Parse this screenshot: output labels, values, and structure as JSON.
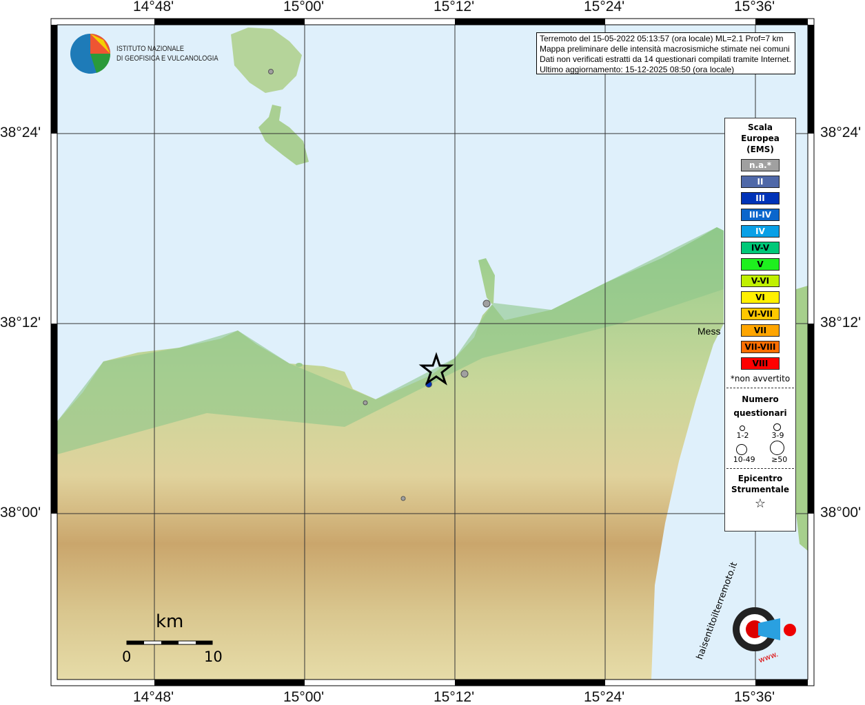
{
  "map": {
    "lon_ticks": [
      "14°48'",
      "15°00'",
      "15°12'",
      "15°24'",
      "15°36'"
    ],
    "lat_ticks": [
      "38°24'",
      "38°12'",
      "38°00'"
    ],
    "place_label": "Mess"
  },
  "logo": {
    "line1": "ISTITUTO NAZIONALE",
    "line2": "DI GEOFISICA E VULCANOLOGIA"
  },
  "info": {
    "lines": [
      "Terremoto del 15-05-2022 05:13:57 (ora locale) ML=2.1 Prof=7 km",
      "Mappa preliminare delle intensità macrosismiche stimate nei comuni",
      "Dati non verificati estratti da 14 questionari compilati tramite Internet.",
      "Ultimo aggiornamento: 15-12-2025 08:50 (ora locale)"
    ]
  },
  "legend": {
    "title": [
      "Scala",
      "Europea",
      "(EMS)"
    ],
    "classes": [
      {
        "label": "n.a.*",
        "color": "#a0a0a0",
        "text": "#ffffff"
      },
      {
        "label": "II",
        "color": "#4f68a8",
        "text": "#ffffff"
      },
      {
        "label": "III",
        "color": "#0033b8",
        "text": "#ffffff"
      },
      {
        "label": "III-IV",
        "color": "#0a66cc",
        "text": "#ffffff"
      },
      {
        "label": "IV",
        "color": "#0aa0e6",
        "text": "#ffffff"
      },
      {
        "label": "IV-V",
        "color": "#00c878",
        "text": "#000000"
      },
      {
        "label": "V",
        "color": "#1ef01e",
        "text": "#000000"
      },
      {
        "label": "V-VI",
        "color": "#c0f000",
        "text": "#000000"
      },
      {
        "label": "VI",
        "color": "#fff000",
        "text": "#000000"
      },
      {
        "label": "VI-VII",
        "color": "#ffc800",
        "text": "#000000"
      },
      {
        "label": "VII",
        "color": "#ffa500",
        "text": "#000000"
      },
      {
        "label": "VII-VIII",
        "color": "#ff6e00",
        "text": "#000000"
      },
      {
        "label": "VIII",
        "color": "#ff0000",
        "text": "#000000"
      }
    ],
    "note": "*non avvertito",
    "count_title": [
      "Numero",
      "questionari"
    ],
    "counts": [
      "1-2",
      "3-9",
      "10-49",
      "≥50"
    ],
    "epicenter_title": [
      "Epicentro",
      "Strumentale"
    ]
  },
  "scale": {
    "unit": "km",
    "min": "0",
    "max": "10"
  },
  "site_logo": {
    "text": "haisentitoilterremoto.it",
    "www": "www."
  }
}
